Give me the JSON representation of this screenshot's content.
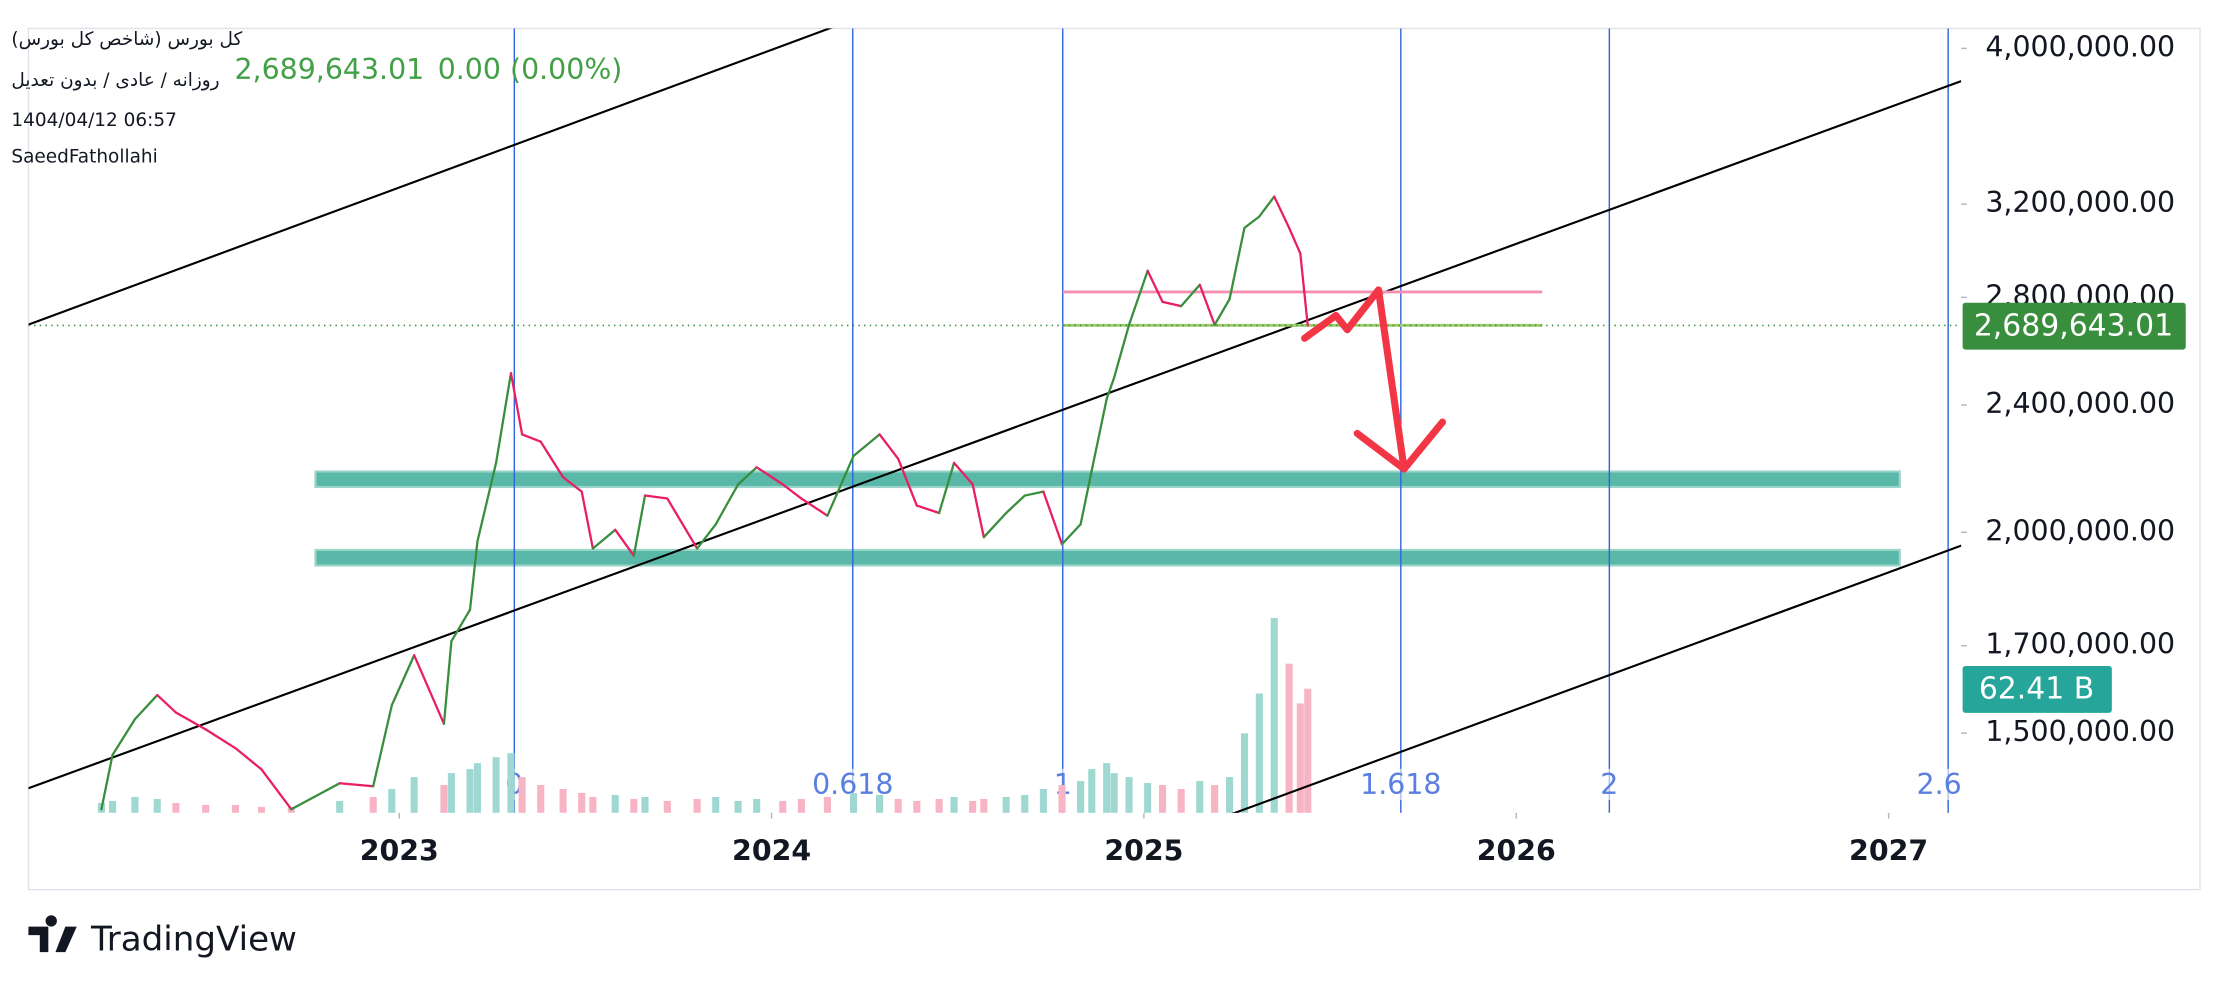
{
  "chart_data": {
    "type": "line",
    "title": "کل بورس (شاخص کل بورس)",
    "subtitle": "روزانه / عادی / بدون تعدیل",
    "timestamp": "1404/04/12 06:57",
    "author": "SaeedFathollahi",
    "change_label": "0.00 (0.00%)",
    "x": [
      2022.2,
      2022.23,
      2022.29,
      2022.35,
      2022.4,
      2022.48,
      2022.56,
      2022.63,
      2022.71,
      2022.84,
      2022.93,
      2022.98,
      2023.04,
      2023.12,
      2023.14,
      2023.19,
      2023.21,
      2023.26,
      2023.3,
      2023.33,
      2023.38,
      2023.44,
      2023.49,
      2023.52,
      2023.58,
      2023.63,
      2023.66,
      2023.72,
      2023.8,
      2023.85,
      2023.91,
      2023.96,
      2024.03,
      2024.08,
      2024.15,
      2024.22,
      2024.29,
      2024.34,
      2024.39,
      2024.45,
      2024.49,
      2024.54,
      2024.57,
      2024.63,
      2024.68,
      2024.73,
      2024.78,
      2024.83,
      2024.86,
      2024.9,
      2024.92,
      2024.96,
      2025.01,
      2025.05,
      2025.1,
      2025.15,
      2025.19,
      2025.23,
      2025.27,
      2025.31,
      2025.35,
      2025.39,
      2025.42,
      2025.44
    ],
    "values": [
      1345000,
      1454000,
      1530000,
      1584000,
      1545000,
      1508000,
      1468000,
      1424000,
      1345000,
      1396000,
      1390000,
      1561000,
      1677000,
      1520000,
      1711000,
      1790000,
      1974000,
      2209000,
      2512000,
      2301000,
      2277000,
      2164000,
      2120000,
      1954000,
      2007000,
      1934000,
      2108000,
      2099000,
      1954000,
      2023000,
      2142000,
      2195000,
      2142000,
      2099000,
      2048000,
      2231000,
      2301000,
      2222000,
      2078000,
      2056000,
      2209000,
      2142000,
      1986000,
      2056000,
      2108000,
      2120000,
      1966000,
      2023000,
      2186000,
      2421000,
      2496000,
      2692000,
      2909000,
      2782000,
      2765000,
      2851000,
      2692000,
      2793000,
      3093000,
      3144000,
      3235000,
      3093000,
      2982000,
      2689643.01
    ],
    "value_labels": [
      null,
      null,
      null,
      null,
      null,
      null,
      null,
      null,
      null,
      null,
      null,
      null,
      null,
      null,
      null,
      null,
      null,
      null,
      null,
      null,
      null,
      null,
      null,
      null,
      null,
      null,
      null,
      null,
      null,
      null,
      null,
      null,
      null,
      null,
      null,
      null,
      null,
      null,
      null,
      null,
      null,
      null,
      null,
      null,
      null,
      null,
      null,
      null,
      null,
      null,
      null,
      null,
      null,
      null,
      null,
      null,
      null,
      null,
      null,
      null,
      null,
      null,
      null,
      "2,689,643.01"
    ],
    "up_color": "#388e3c",
    "down_color": "#e91e63",
    "volume": {
      "values": [
        5,
        6,
        8,
        7,
        5,
        4,
        4,
        3,
        3,
        6,
        8,
        12,
        18,
        14,
        20,
        22,
        25,
        28,
        30,
        18,
        14,
        12,
        10,
        8,
        9,
        7,
        8,
        6,
        7,
        8,
        6,
        7,
        6,
        7,
        8,
        10,
        9,
        7,
        6,
        7,
        8,
        6,
        7,
        8,
        9,
        12,
        14,
        16,
        22,
        25,
        20,
        18,
        15,
        14,
        12,
        16,
        14,
        18,
        40,
        60,
        98,
        75,
        55,
        62.41
      ],
      "value_labels": [
        null,
        null,
        null,
        null,
        null,
        null,
        null,
        null,
        null,
        null,
        null,
        null,
        null,
        null,
        null,
        null,
        null,
        null,
        null,
        null,
        null,
        null,
        null,
        null,
        null,
        null,
        null,
        null,
        null,
        null,
        null,
        null,
        null,
        null,
        null,
        null,
        null,
        null,
        null,
        null,
        null,
        null,
        null,
        null,
        null,
        null,
        null,
        null,
        null,
        null,
        null,
        null,
        null,
        null,
        null,
        null,
        null,
        null,
        null,
        null,
        null,
        null,
        null,
        "62.41 B"
      ],
      "lim": [
        0,
        100
      ],
      "up_color": "#9fd8d0",
      "down_color": "#f6b4c4",
      "tag_color": "#26a69a"
    },
    "log_scale": true,
    "xlim": [
      2022.004,
      2027.195
    ],
    "xticks": [
      2023,
      2024,
      2025,
      2026,
      2027
    ],
    "ylim": [
      1338000,
      4116000
    ],
    "yticks": [
      {
        "value": 1500000,
        "label": "1,500,000.00"
      },
      {
        "value": 1700000,
        "label": "1,700,000.00"
      },
      {
        "value": 2000000,
        "label": "2,000,000.00"
      },
      {
        "value": 2400000,
        "label": "2,400,000.00"
      },
      {
        "value": 2800000,
        "label": "2,800,000.00"
      },
      {
        "value": 3200000,
        "label": "3,200,000.00"
      },
      {
        "value": 4000000,
        "label": "4,000,000.00"
      }
    ],
    "price_tag_color": "#388e3c",
    "channel": {
      "color": "#000000",
      "lines": [
        {
          "x": [
            2022.004,
            2024.176
          ],
          "y": [
            2693000,
            4133000
          ]
        },
        {
          "x": [
            2022.004,
            2027.195
          ],
          "y": [
            1386000,
            3817000
          ]
        },
        {
          "x": [
            2025.229,
            2027.195
          ],
          "y": [
            1334000,
            1962000
          ]
        }
      ]
    },
    "zones": {
      "color": "#5ab8a8",
      "bands": [
        {
          "x": [
            2022.775,
            2027.03
          ],
          "y": [
            2134000,
            2182000
          ]
        },
        {
          "x": [
            2022.775,
            2027.03
          ],
          "y": [
            1907000,
            1950000
          ]
        }
      ]
    },
    "levels": [
      {
        "x": [
          2024.782,
          2026.07
        ],
        "y": 2822000,
        "color": "#f48fb1"
      },
      {
        "x": [
          2024.782,
          2026.07
        ],
        "y": 2690000,
        "color": "#9ccc65"
      }
    ],
    "fib": {
      "color": "#2f66e0",
      "labels": [
        "0",
        "0.618",
        "1",
        "1.618",
        "2",
        "2.61"
      ],
      "x": [
        2023.309,
        2024.218,
        2024.782,
        2025.69,
        2026.25,
        2027.16
      ]
    },
    "logo_text": "TradingView"
  }
}
